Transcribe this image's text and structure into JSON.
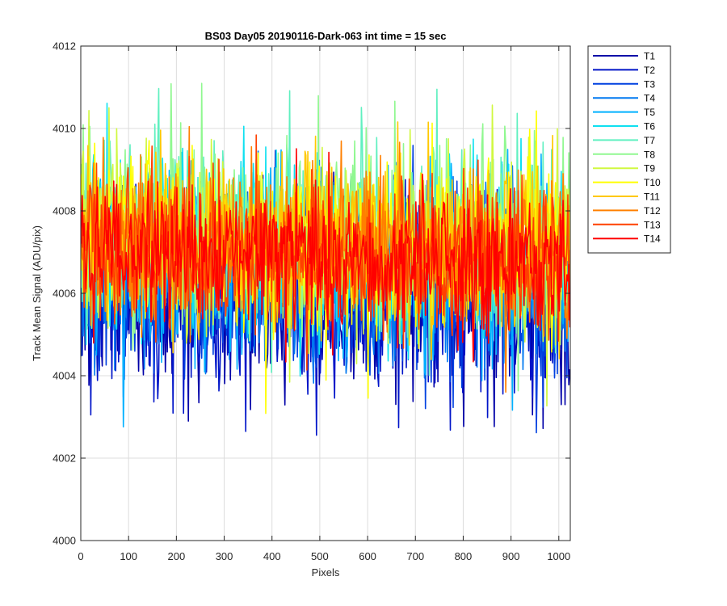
{
  "chart_data": {
    "type": "line",
    "title": "BS03 Day05 20190116-Dark-063 int time = 15 sec",
    "xlabel": "Pixels",
    "ylabel": "Track Mean Signal (ADU/pix)",
    "xlim": [
      0,
      1024
    ],
    "ylim": [
      4000,
      4012
    ],
    "xticks": [
      0,
      100,
      200,
      300,
      400,
      500,
      600,
      700,
      800,
      900,
      1000
    ],
    "yticks": [
      4000,
      4002,
      4004,
      4006,
      4008,
      4010,
      4012
    ],
    "grid": true,
    "legend_position": "outside-top-right",
    "series": [
      {
        "name": "T1",
        "color": "#0000a8",
        "baseline": 4006.0,
        "noise": 1.2,
        "trend": -0.2
      },
      {
        "name": "T2",
        "color": "#0014c8",
        "baseline": 4006.1,
        "noise": 1.15,
        "trend": -0.2
      },
      {
        "name": "T3",
        "color": "#0040e0",
        "baseline": 4006.3,
        "noise": 1.1,
        "trend": -0.2
      },
      {
        "name": "T4",
        "color": "#0078f0",
        "baseline": 4006.5,
        "noise": 1.1,
        "trend": -0.2
      },
      {
        "name": "T5",
        "color": "#00b0ff",
        "baseline": 4006.9,
        "noise": 1.1,
        "trend": -0.3
      },
      {
        "name": "T6",
        "color": "#10e0f0",
        "baseline": 4007.2,
        "noise": 1.1,
        "trend": -0.3
      },
      {
        "name": "T7",
        "color": "#60f0c0",
        "baseline": 4007.4,
        "noise": 1.1,
        "trend": -0.3
      },
      {
        "name": "T8",
        "color": "#90f890",
        "baseline": 4007.6,
        "noise": 1.1,
        "trend": -0.3
      },
      {
        "name": "T9",
        "color": "#d0f840",
        "baseline": 4007.5,
        "noise": 1.1,
        "trend": -0.3
      },
      {
        "name": "T10",
        "color": "#ffff00",
        "baseline": 4007.4,
        "noise": 1.1,
        "trend": -0.3
      },
      {
        "name": "T11",
        "color": "#ffc800",
        "baseline": 4007.3,
        "noise": 1.05,
        "trend": -0.3
      },
      {
        "name": "T12",
        "color": "#ff8000",
        "baseline": 4007.2,
        "noise": 1.0,
        "trend": -0.3
      },
      {
        "name": "T13",
        "color": "#ff4000",
        "baseline": 4007.0,
        "noise": 0.95,
        "trend": -0.3
      },
      {
        "name": "T14",
        "color": "#ff0000",
        "baseline": 4006.9,
        "noise": 0.9,
        "trend": -0.3
      }
    ]
  }
}
